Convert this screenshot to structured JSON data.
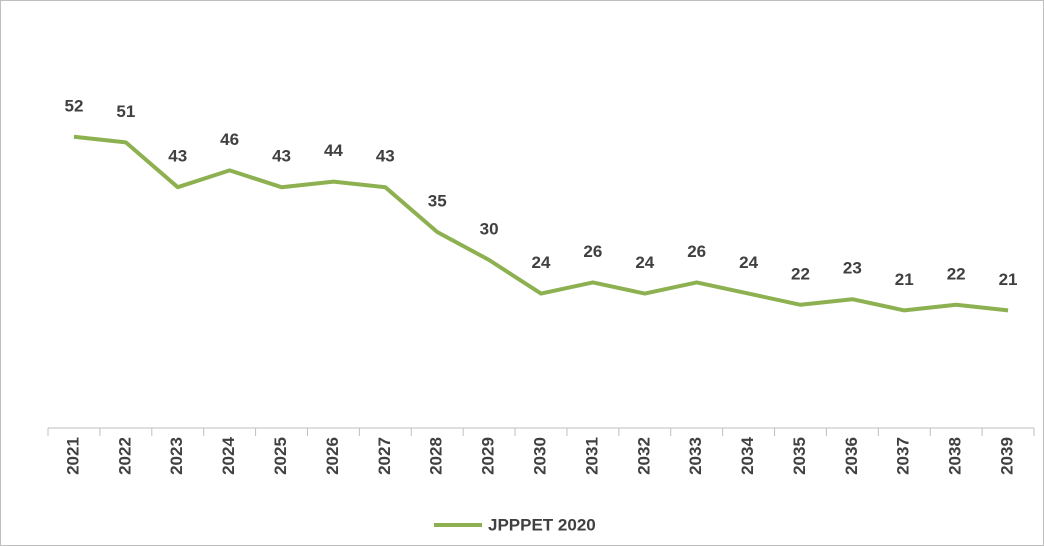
{
  "chart_data": {
    "type": "line",
    "categories": [
      "2021",
      "2022",
      "2023",
      "2024",
      "2025",
      "2026",
      "2027",
      "2028",
      "2029",
      "2030",
      "2031",
      "2032",
      "2033",
      "2034",
      "2035",
      "2036",
      "2037",
      "2038",
      "2039"
    ],
    "series": [
      {
        "name": "JPPPET 2020",
        "color": "#8db151",
        "values": [
          52,
          51,
          43,
          46,
          43,
          44,
          43,
          35,
          30,
          24,
          26,
          24,
          26,
          24,
          22,
          23,
          21,
          22,
          21
        ]
      }
    ],
    "ylim": [
      0,
      75
    ],
    "legend": "bottom"
  }
}
